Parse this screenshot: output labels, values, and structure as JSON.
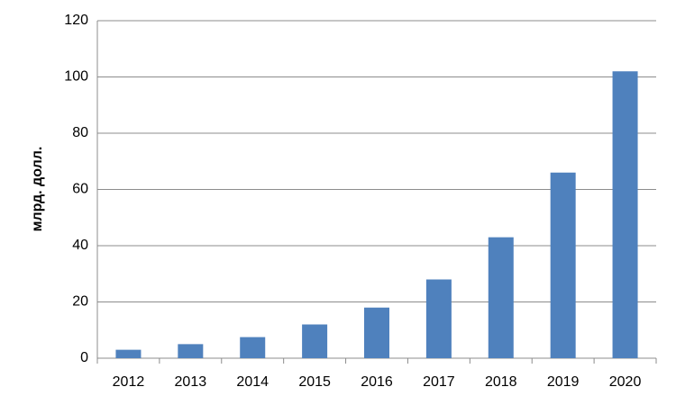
{
  "chart_data": {
    "type": "bar",
    "y_label": "млрд. долл.",
    "categories": [
      "2012",
      "2013",
      "2014",
      "2015",
      "2016",
      "2017",
      "2018",
      "2019",
      "2020"
    ],
    "values": [
      3,
      5,
      7.5,
      12,
      18,
      28,
      43,
      66,
      102
    ],
    "color": "#4f81bd",
    "ylim": [
      0,
      120
    ],
    "yticks": [
      0,
      20,
      40,
      60,
      80,
      100,
      120
    ],
    "grid": true
  }
}
